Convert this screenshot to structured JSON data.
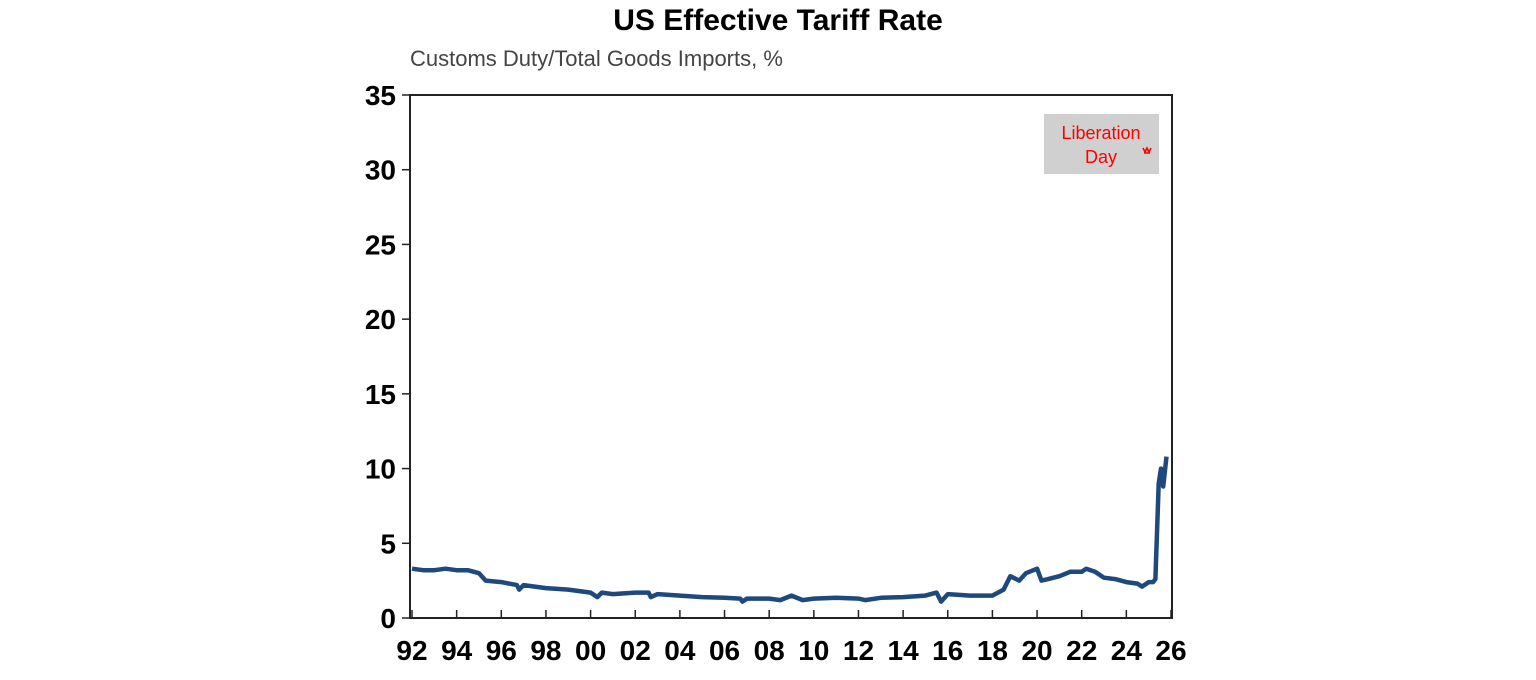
{
  "chart_data": {
    "type": "line",
    "title": "US Effective Tariff Rate",
    "subtitle": "Customs Duty/Total Goods Imports, %",
    "xlabel": "",
    "ylabel": "",
    "xlim": [
      1992,
      2026
    ],
    "ylim": [
      0,
      35
    ],
    "yticks": [
      "0",
      "5",
      "10",
      "15",
      "20",
      "25",
      "30",
      "35"
    ],
    "xticks": [
      "92",
      "94",
      "96",
      "98",
      "00",
      "02",
      "04",
      "06",
      "08",
      "10",
      "12",
      "14",
      "16",
      "18",
      "20",
      "22",
      "24",
      "26"
    ],
    "grid": false,
    "line_color": "#1f497d",
    "annotation": {
      "text_line1": "Liberation",
      "text_line2": "Day",
      "color": "#ff0000",
      "background": "#d0d0d0",
      "position": "top-right"
    },
    "series": [
      {
        "x": [
          1992,
          1992.5,
          1993,
          1993.5,
          1994,
          1994.5,
          1995,
          1995.3,
          1996,
          1996.7,
          1996.8,
          1997,
          1998,
          1999,
          2000,
          2000.3,
          2000.5,
          2001,
          2002,
          2002.6,
          2002.7,
          2003,
          2004,
          2005,
          2006,
          2006.7,
          2006.8,
          2007,
          2008,
          2008.5,
          2009,
          2009.5,
          2010,
          2011,
          2012,
          2012.3,
          2013,
          2014,
          2015,
          2015.5,
          2015.7,
          2016,
          2017,
          2018,
          2018.5,
          2018.8,
          2019.2,
          2019.5,
          2020,
          2020.2,
          2020.5,
          2021,
          2021.5,
          2022,
          2022.2,
          2022.6,
          2023,
          2023.5,
          2024,
          2024.5,
          2024.7,
          2025,
          2025.2,
          2025.3,
          2025.45,
          2025.55,
          2025.65,
          2025.8
        ],
        "y": [
          3.3,
          3.2,
          3.2,
          3.3,
          3.2,
          3.2,
          3.0,
          2.5,
          2.4,
          2.2,
          1.9,
          2.2,
          2.0,
          1.9,
          1.7,
          1.4,
          1.7,
          1.6,
          1.7,
          1.7,
          1.4,
          1.6,
          1.5,
          1.4,
          1.35,
          1.3,
          1.1,
          1.3,
          1.3,
          1.2,
          1.5,
          1.2,
          1.3,
          1.35,
          1.3,
          1.2,
          1.35,
          1.4,
          1.5,
          1.7,
          1.1,
          1.6,
          1.5,
          1.5,
          1.9,
          2.8,
          2.5,
          3.0,
          3.3,
          2.5,
          2.6,
          2.8,
          3.1,
          3.1,
          3.3,
          3.1,
          2.7,
          2.6,
          2.4,
          2.3,
          2.1,
          2.4,
          2.4,
          2.6,
          9.0,
          10.0,
          8.8,
          10.8
        ]
      }
    ]
  }
}
